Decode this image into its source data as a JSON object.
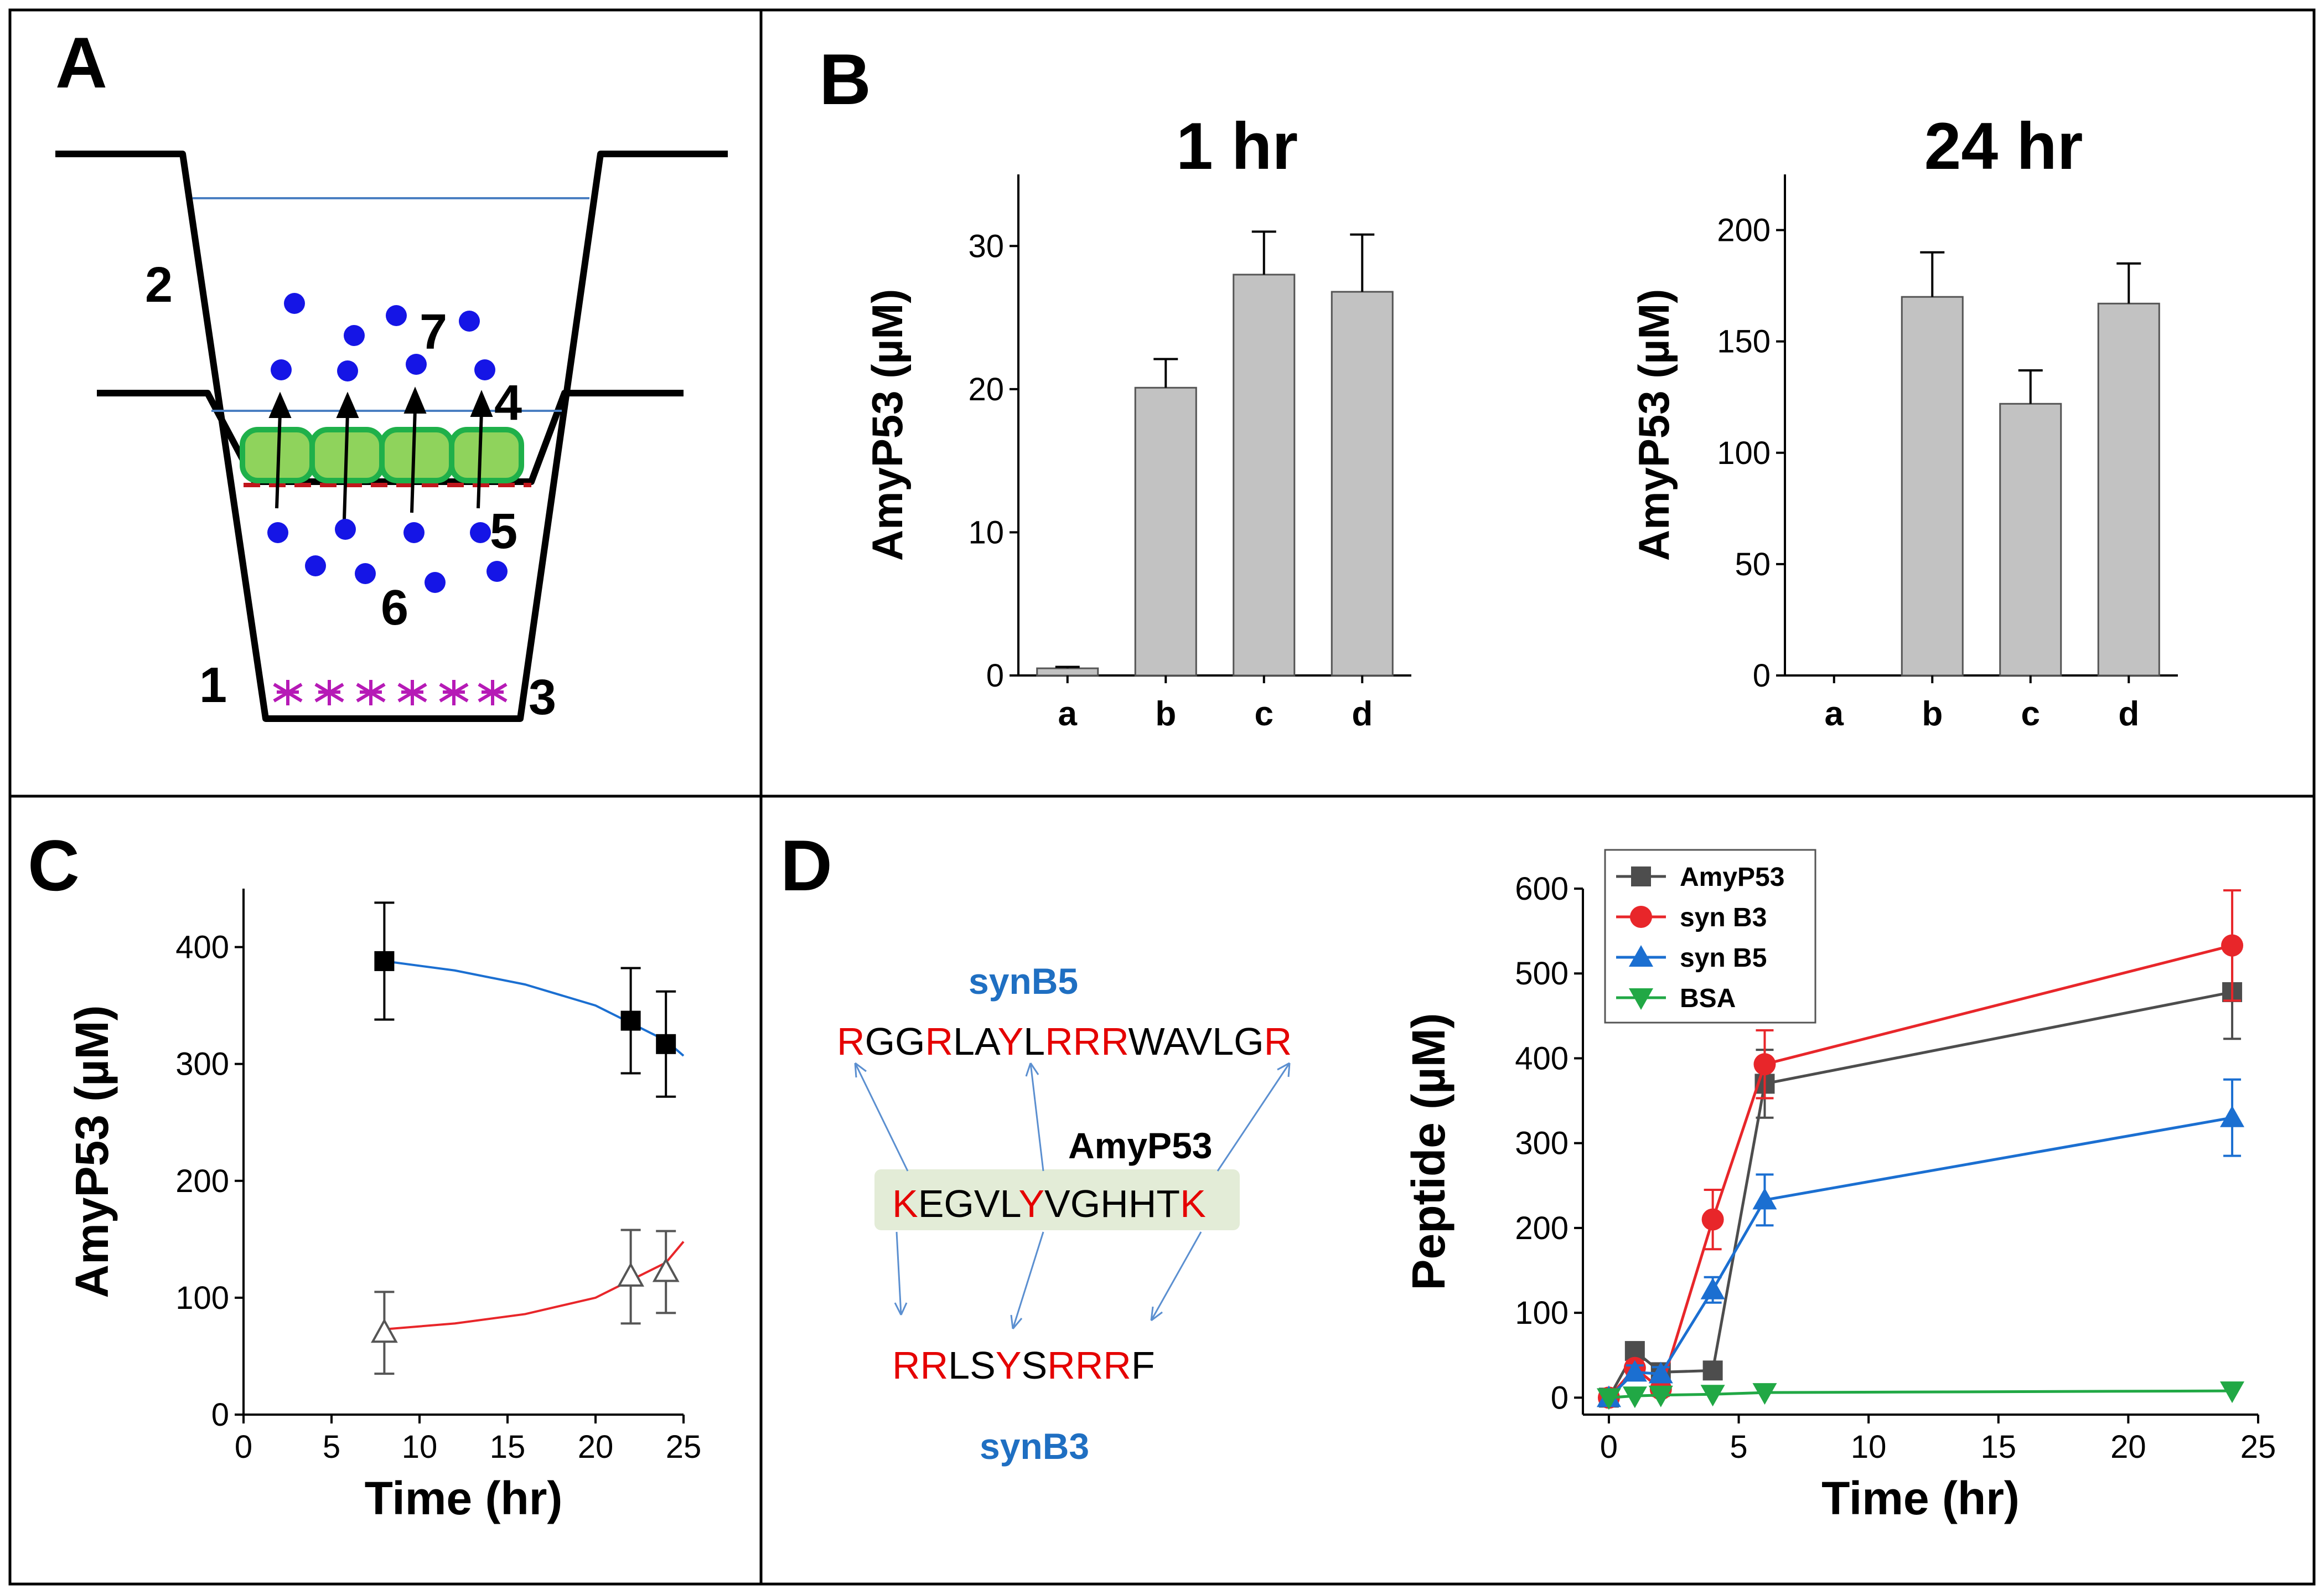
{
  "panels": {
    "A": {
      "letter": "A",
      "labels": [
        "1",
        "2",
        "3",
        "4",
        "5",
        "6",
        "7"
      ]
    },
    "B": {
      "letter": "B"
    },
    "C": {
      "letter": "C"
    },
    "D": {
      "letter": "D"
    }
  },
  "sequences": {
    "synB5": {
      "name": "synB5",
      "seq": "RGGRLAYLRRRWAVLGR",
      "red_positions": [
        0,
        3,
        6,
        8,
        9,
        10,
        16
      ]
    },
    "amyP53": {
      "name": "AmyP53",
      "seq": "KEGVLYVGHHTK",
      "red_positions": [
        0,
        5,
        11
      ]
    },
    "synB3": {
      "name": "synB3",
      "seq": "RRLSYSRRRF",
      "red_positions": [
        0,
        1,
        4,
        6,
        7,
        8
      ]
    }
  },
  "colors": {
    "bar_fill": "#c2c2c2",
    "red": "#e8262a",
    "blue": "#1b6fd1",
    "green": "#21a845",
    "gray": "#4d4d4d",
    "seq_red": "#e50000",
    "name_blue": "#1f6fc2"
  },
  "chart_data": [
    {
      "id": "B1",
      "type": "bar",
      "title": "1 hr",
      "ylabel": "AmyP53 (µM)",
      "xlabel": "",
      "categories": [
        "a",
        "b",
        "c",
        "d"
      ],
      "values": [
        0.5,
        20.1,
        28.0,
        26.8
      ],
      "errors": [
        0.1,
        2.0,
        3.0,
        4.0
      ],
      "ylim": [
        0,
        35
      ],
      "yticks": [
        0,
        10,
        20,
        30
      ]
    },
    {
      "id": "B24",
      "type": "bar",
      "title": "24 hr",
      "ylabel": "AmyP53 (µM)",
      "xlabel": "",
      "categories": [
        "a",
        "b",
        "c",
        "d"
      ],
      "values": [
        0,
        170,
        122,
        167
      ],
      "errors": [
        0,
        20,
        15,
        18
      ],
      "ylim": [
        0,
        225
      ],
      "yticks": [
        0,
        50,
        100,
        150,
        200
      ]
    },
    {
      "id": "C",
      "type": "scatter",
      "xlabel": "Time (hr)",
      "ylabel": "AmyP53 (µM)",
      "xlim": [
        0,
        25
      ],
      "ylim": [
        0,
        450
      ],
      "xticks": [
        0,
        5,
        10,
        15,
        20,
        25
      ],
      "yticks": [
        0,
        100,
        200,
        300,
        400
      ],
      "series": [
        {
          "name": "filled squares",
          "marker": "square-filled",
          "color": "#000000",
          "fit_color": "#1b6fd1",
          "x": [
            8,
            22,
            24
          ],
          "y": [
            388,
            337,
            317
          ],
          "errors": [
            50,
            45,
            45
          ],
          "fit": {
            "x": [
              8,
              12,
              16,
              20,
              24,
              25
            ],
            "y": [
              388,
              380,
              368,
              350,
              320,
              307
            ]
          }
        },
        {
          "name": "open triangles",
          "marker": "triangle-open",
          "color": "#555555",
          "fit_color": "#e8262a",
          "x": [
            8,
            22,
            24
          ],
          "y": [
            70,
            118,
            122
          ],
          "errors": [
            35,
            40,
            35
          ],
          "fit": {
            "x": [
              8,
              12,
              16,
              20,
              24,
              25
            ],
            "y": [
              73,
              78,
              86,
              100,
              130,
              148
            ]
          }
        }
      ]
    },
    {
      "id": "D",
      "type": "line",
      "xlabel": "Time (hr)",
      "ylabel": "Peptide (µM)",
      "xlim": [
        -1,
        25
      ],
      "ylim": [
        -20,
        600
      ],
      "xticks": [
        0,
        5,
        10,
        15,
        20,
        25
      ],
      "yticks": [
        0,
        100,
        200,
        300,
        400,
        500,
        600
      ],
      "legend_position": "top-left",
      "series": [
        {
          "name": "AmyP53",
          "color": "#4d4d4d",
          "marker": "square",
          "x": [
            0,
            1,
            2,
            4,
            6,
            24
          ],
          "y": [
            0,
            55,
            30,
            32,
            370,
            478
          ],
          "errors": [
            0,
            8,
            8,
            8,
            40,
            55
          ]
        },
        {
          "name": "syn B3",
          "color": "#e8262a",
          "marker": "circle",
          "x": [
            0,
            1,
            2,
            4,
            6,
            24
          ],
          "y": [
            0,
            35,
            10,
            210,
            393,
            533
          ],
          "errors": [
            0,
            8,
            8,
            35,
            40,
            65
          ]
        },
        {
          "name": "syn B5",
          "color": "#1b6fd1",
          "marker": "triangle-up",
          "x": [
            0,
            1,
            2,
            4,
            6,
            24
          ],
          "y": [
            0,
            30,
            28,
            127,
            233,
            330
          ],
          "errors": [
            0,
            8,
            8,
            15,
            30,
            45
          ]
        },
        {
          "name": "BSA",
          "color": "#21a845",
          "marker": "triangle-down",
          "x": [
            0,
            1,
            2,
            4,
            6,
            24
          ],
          "y": [
            0,
            2,
            3,
            4,
            6,
            8
          ],
          "errors": [
            0,
            0,
            0,
            0,
            0,
            0
          ]
        }
      ]
    }
  ]
}
